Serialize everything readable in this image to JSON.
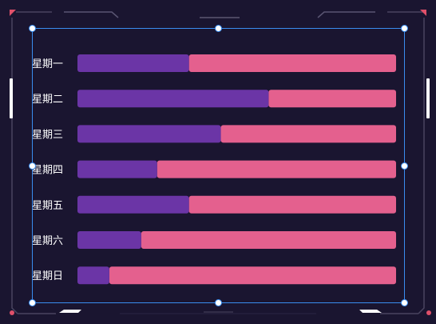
{
  "chart_data": {
    "type": "bar",
    "orientation": "horizontal",
    "stacked": true,
    "categories": [
      "星期一",
      "星期二",
      "星期三",
      "星期四",
      "星期五",
      "星期六",
      "星期日"
    ],
    "series": [
      {
        "values": [
          35,
          60,
          45,
          25,
          35,
          20,
          10
        ],
        "color": "#6b35a6"
      },
      {
        "values": [
          65,
          40,
          55,
          75,
          65,
          80,
          90
        ],
        "color": "#e4608e"
      }
    ],
    "xlim": [
      0,
      100
    ],
    "grid": false,
    "legend": "none"
  },
  "theme": {
    "background": "#1a1530",
    "frame": "#4a4560",
    "accent_red": "#e0506a",
    "selection": "#3a8df0"
  }
}
